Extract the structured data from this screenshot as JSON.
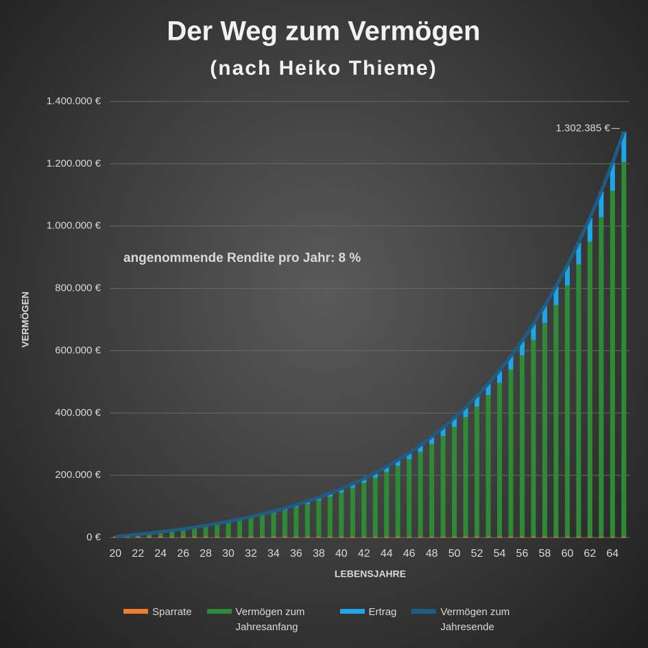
{
  "chart_data": {
    "type": "bar",
    "stacked": true,
    "title": "Der Weg zum Vermögen",
    "subtitle": "(nach Heiko Thieme)",
    "annotation": "angenommende Rendite pro Jahr: 8 %",
    "x_label": "LEBENSJAHRE",
    "y_label": "VERMÖGEN",
    "categories": [
      "20",
      null,
      "22",
      null,
      "24",
      null,
      "26",
      null,
      "28",
      null,
      "30",
      null,
      "32",
      null,
      "34",
      null,
      "36",
      null,
      "38",
      null,
      "40",
      null,
      "42",
      null,
      "44",
      null,
      "46",
      null,
      "48",
      null,
      "50",
      null,
      "52",
      null,
      "54",
      null,
      "56",
      null,
      "58",
      null,
      "60",
      null,
      "62",
      null,
      "64",
      null
    ],
    "ylim": [
      0,
      1400000
    ],
    "yticks": [
      {
        "value": 0,
        "label": "0 €"
      },
      {
        "value": 200000,
        "label": "200.000 €"
      },
      {
        "value": 400000,
        "label": "400.000 €"
      },
      {
        "value": 600000,
        "label": "600.000 €"
      },
      {
        "value": 800000,
        "label": "800.000 €"
      },
      {
        "value": 1000000,
        "label": "1.000.000 €"
      },
      {
        "value": 1200000,
        "label": "1.200.000 €"
      },
      {
        "value": 1400000,
        "label": "1.400.000 €"
      }
    ],
    "grid": true,
    "legend": "bottom",
    "series": [
      {
        "name": "Sparrate",
        "color": "#ed7d31",
        "values": [
          2882,
          2882,
          2882,
          2882,
          2882,
          2882,
          2882,
          2882,
          2882,
          2882,
          2882,
          2882,
          2882,
          2882,
          2882,
          2882,
          2882,
          2882,
          2882,
          2882,
          2882,
          2882,
          2882,
          2882,
          2882,
          2882,
          2882,
          2882,
          2882,
          2882,
          2882,
          2882,
          2882,
          2882,
          2882,
          2882,
          2882,
          2882,
          2882,
          2882,
          2882,
          2882,
          2882,
          2882,
          2882,
          2882
        ]
      },
      {
        "name": "Vermögen zum Jahresanfang",
        "color": "#2f8a38",
        "values": [
          0,
          3113,
          6474,
          10105,
          14026,
          18260,
          22834,
          27773,
          33107,
          38868,
          45090,
          51810,
          59068,
          66905,
          75370,
          84513,
          94386,
          105050,
          116566,
          129004,
          142437,
          156944,
          172612,
          189534,
          207809,
          227547,
          248863,
          271884,
          296748,
          323600,
          352601,
          383921,
          417748,
          454280,
          493735,
          536347,
          582367,
          632069,
          685755,
          743719,
          806329,
          873947,
          946977,
          1025847,
          1111027,
          1203021
        ]
      },
      {
        "name": "Ertrag",
        "color": "#1ea7e8",
        "values": [
          231,
          479,
          749,
          1039,
          1352,
          1692,
          2057,
          2452,
          2879,
          3340,
          3838,
          4376,
          4955,
          5583,
          6261,
          6991,
          7782,
          8634,
          9556,
          10551,
          11625,
          12786,
          14040,
          15393,
          16856,
          18434,
          20139,
          21982,
          23970,
          26119,
          28438,
          30945,
          33650,
          36573,
          39730,
          43138,
          46820,
          50804,
          55082,
          59728,
          64736,
          70148,
          75988,
          82298,
          89112,
          96482
        ]
      },
      {
        "name": "Vermögen zum Jahresende",
        "color": "#1f5d86",
        "type": "line",
        "values": [
          3113,
          6474,
          10105,
          14026,
          18260,
          22834,
          27773,
          33107,
          38868,
          45090,
          51810,
          59068,
          66905,
          75370,
          84513,
          94386,
          105050,
          116566,
          129004,
          142437,
          156944,
          172612,
          189534,
          207809,
          227547,
          248863,
          271884,
          296748,
          323600,
          352601,
          383921,
          417748,
          454280,
          493735,
          536347,
          582367,
          632069,
          685755,
          743719,
          806329,
          873947,
          946977,
          1025847,
          1111027,
          1203021,
          1302385
        ],
        "value_labels": [
          null,
          null,
          null,
          null,
          null,
          null,
          null,
          null,
          null,
          null,
          null,
          null,
          null,
          null,
          null,
          null,
          null,
          null,
          null,
          null,
          null,
          null,
          null,
          null,
          null,
          null,
          null,
          null,
          null,
          null,
          null,
          null,
          null,
          null,
          null,
          null,
          null,
          null,
          null,
          null,
          null,
          null,
          null,
          null,
          null,
          "1.302.385 €"
        ]
      }
    ]
  }
}
